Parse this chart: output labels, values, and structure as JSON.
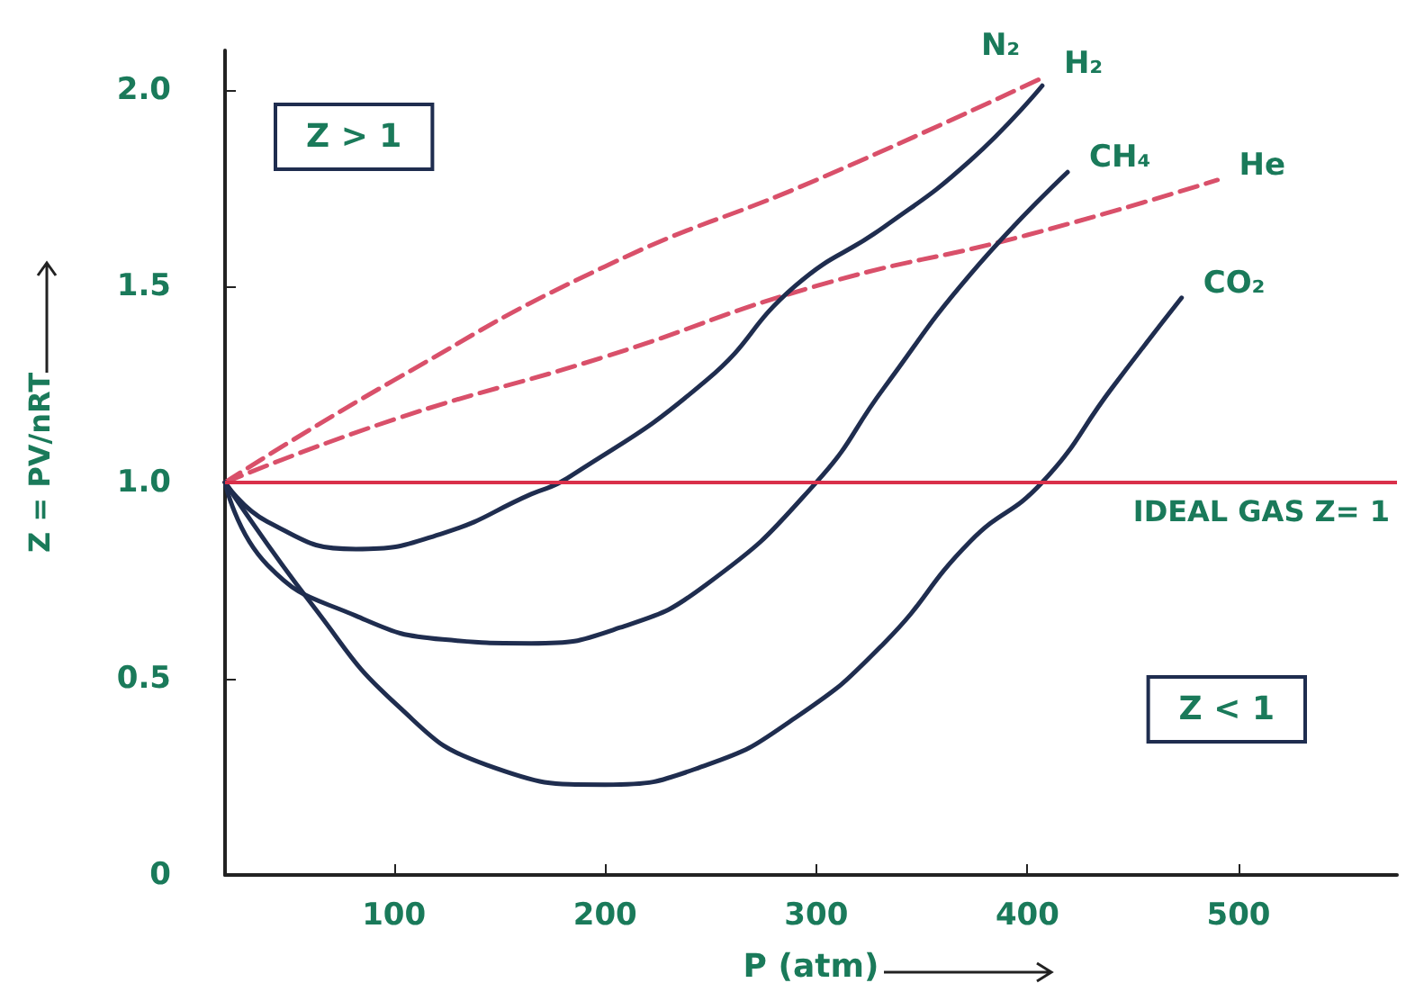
{
  "chart_data": {
    "type": "line",
    "xlabel": "P (atm)",
    "ylabel": "Z = PV/nRT",
    "xlim": [
      20,
      575
    ],
    "xticks": [
      100,
      200,
      300,
      400,
      500
    ],
    "ylim": [
      0,
      2.1
    ],
    "yticks": [
      {
        "value": 0,
        "label": "0"
      },
      0.5,
      {
        "value": 1,
        "label": "1.0"
      },
      1.5,
      {
        "value": 2,
        "label": "2.0"
      }
    ],
    "grid": false,
    "legend": false,
    "marker": "none",
    "series": [
      {
        "name": "H₂",
        "color": "#d9506a",
        "line_style": "dashed",
        "x": [
          20,
          100,
          200,
          300,
          407
        ],
        "values": [
          1.0,
          1.26,
          1.55,
          1.77,
          2.03
        ]
      },
      {
        "name": "He",
        "color": "#d9506a",
        "line_style": "dashed",
        "x": [
          20,
          100,
          200,
          300,
          400,
          490
        ],
        "values": [
          1.0,
          1.16,
          1.32,
          1.5,
          1.63,
          1.77
        ]
      },
      {
        "name": "N₂",
        "color": "#1f2d4f",
        "line_style": "solid",
        "x": [
          20,
          40,
          82,
          123,
          165,
          182,
          248,
          290,
          332,
          373,
          407
        ],
        "values": [
          1.0,
          0.9,
          0.83,
          0.87,
          0.97,
          1.01,
          1.26,
          1.5,
          1.65,
          1.82,
          2.01
        ]
      },
      {
        "name": "CH₄",
        "color": "#1f2d4f",
        "line_style": "solid",
        "x": [
          20,
          40,
          82,
          123,
          165,
          207,
          248,
          300,
          332,
          373,
          419
        ],
        "values": [
          1.0,
          0.79,
          0.66,
          0.6,
          0.59,
          0.63,
          0.74,
          1.0,
          1.24,
          1.53,
          1.79
        ]
      },
      {
        "name": "CO₂",
        "color": "#1f2d4f",
        "line_style": "solid",
        "x": [
          20,
          61,
          102,
          144,
          200,
          248,
          290,
          332,
          373,
          407,
          440,
          473
        ],
        "values": [
          1.0,
          0.69,
          0.43,
          0.28,
          0.23,
          0.28,
          0.4,
          0.59,
          0.85,
          1.0,
          1.24,
          1.47
        ]
      }
    ],
    "ref_lines": [
      {
        "axis": "y",
        "value": 1,
        "label": "IDEAL GAS Z= 1",
        "color": "#d9304a",
        "line_style": "solid"
      }
    ],
    "annotations": [
      "Z > 1",
      "Z < 1"
    ]
  }
}
